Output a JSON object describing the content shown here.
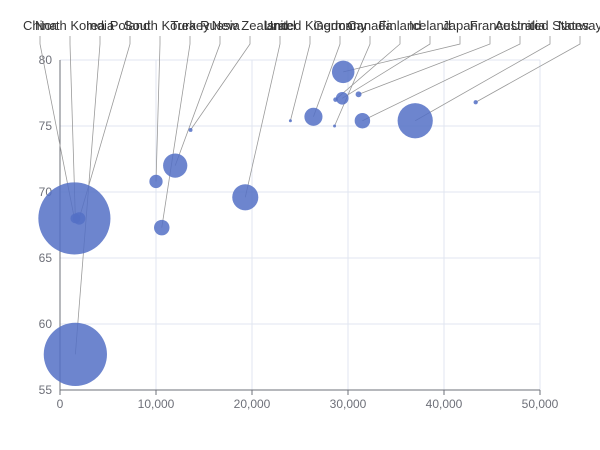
{
  "chart_data": {
    "type": "scatter",
    "subtype": "bubble",
    "title": "",
    "xlabel": "",
    "ylabel": "",
    "xlim": [
      0,
      50000
    ],
    "ylim": [
      55,
      80
    ],
    "x_ticks": [
      0,
      10000,
      20000,
      30000,
      40000,
      50000
    ],
    "y_ticks": [
      55,
      60,
      65,
      70,
      75,
      80
    ],
    "grid": true,
    "legend": "none",
    "color": "#5470c6",
    "series": [
      {
        "points": [
          {
            "name": "North Korea",
            "x": 1600,
            "y": 68.0,
            "size": 24000000
          },
          {
            "name": "Poland",
            "x": 2000,
            "y": 68.0,
            "size": 38000000
          },
          {
            "name": "China",
            "x": 1500,
            "y": 68.0,
            "size": 1300000000
          },
          {
            "name": "India",
            "x": 1600,
            "y": 57.7,
            "size": 1000000000
          },
          {
            "name": "South Korea",
            "x": 10000,
            "y": 70.8,
            "size": 44000000
          },
          {
            "name": "Turkey",
            "x": 10600,
            "y": 67.3,
            "size": 60000000
          },
          {
            "name": "Russia",
            "x": 12000,
            "y": 72.0,
            "size": 147000000
          },
          {
            "name": "New Zealand",
            "x": 13600,
            "y": 74.7,
            "size": 3800000
          },
          {
            "name": "Israel",
            "x": 19300,
            "y": 69.6,
            "size": 170000000
          },
          {
            "name": "United Kingdom",
            "x": 24000,
            "y": 75.4,
            "size": 1500000
          },
          {
            "name": "Germany",
            "x": 26400,
            "y": 75.7,
            "size": 82000000
          },
          {
            "name": "Canada",
            "x": 28600,
            "y": 75.0,
            "size": 1600000
          },
          {
            "name": "Finland",
            "x": 28700,
            "y": 77.0,
            "size": 5100000
          },
          {
            "name": "Iceland",
            "x": 29400,
            "y": 77.1,
            "size": 40000000
          },
          {
            "name": "Japan",
            "x": 29500,
            "y": 79.1,
            "size": 127000000
          },
          {
            "name": "France",
            "x": 31100,
            "y": 77.4,
            "size": 8900000
          },
          {
            "name": "Australia",
            "x": 31500,
            "y": 75.4,
            "size": 60000000
          },
          {
            "name": "United States",
            "x": 37000,
            "y": 75.4,
            "size": 310000000
          },
          {
            "name": "Norway",
            "x": 43300,
            "y": 76.8,
            "size": 4600000
          }
        ]
      }
    ]
  }
}
